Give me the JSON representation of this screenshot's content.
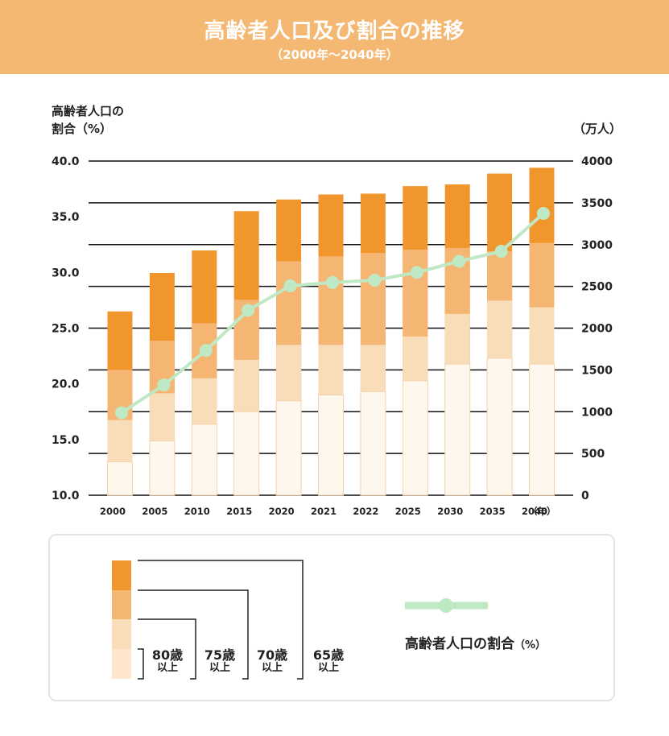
{
  "header": {
    "title": "高齢者人口及び割合の推移",
    "subtitle": "（2000年～2040年）"
  },
  "chart_data": {
    "type": "bar",
    "title": "高齢者人口及び割合の推移",
    "subtitle": "（2000年～2040年）",
    "categories": [
      "2000",
      "2005",
      "2010",
      "2015",
      "2020",
      "2021",
      "2022",
      "2025",
      "2030",
      "2035",
      "2040"
    ],
    "x_unit_label": "（年）",
    "left_axis": {
      "label_line1": "高齢者人口の",
      "label_line2": "割合（%）",
      "range": [
        10,
        40
      ],
      "ticks": [
        "10.0",
        "15.0",
        "20.0",
        "25.0",
        "30.0",
        "35.0",
        "40.0"
      ]
    },
    "right_axis": {
      "label": "（万人）",
      "range": [
        0,
        4000
      ],
      "ticks": [
        "0",
        "500",
        "1000",
        "1500",
        "2000",
        "2500",
        "3000",
        "3500",
        "4000"
      ]
    },
    "bar_series": [
      {
        "name": "80歳以上",
        "color": "#fef7ee",
        "values": [
          400,
          650,
          850,
          1000,
          1130,
          1200,
          1240,
          1370,
          1570,
          1640,
          1570
        ]
      },
      {
        "name": "75歳以上",
        "color": "#f9dcb8",
        "values": [
          900,
          1220,
          1400,
          1620,
          1800,
          1800,
          1800,
          1900,
          2170,
          2330,
          2250
        ]
      },
      {
        "name": "70歳以上",
        "color": "#f5b674",
        "values": [
          1500,
          1850,
          2060,
          2340,
          2800,
          2860,
          2900,
          2940,
          2960,
          2920,
          3020
        ]
      },
      {
        "name": "65歳以上",
        "color": "#f0962c",
        "values": [
          2200,
          2660,
          2930,
          3400,
          3540,
          3600,
          3610,
          3700,
          3720,
          3850,
          3920
        ]
      }
    ],
    "line_series": {
      "name": "高齢者人口の割合（%）",
      "color": "#bfe8c4",
      "values": [
        17.4,
        19.9,
        23.0,
        26.6,
        28.8,
        29.1,
        29.3,
        30.0,
        31.0,
        31.9,
        35.3
      ]
    },
    "grid": true
  },
  "legend": {
    "labels": [
      {
        "top": "80歳",
        "bottom": "以上"
      },
      {
        "top": "75歳",
        "bottom": "以上"
      },
      {
        "top": "70歳",
        "bottom": "以上"
      },
      {
        "top": "65歳",
        "bottom": "以上"
      }
    ],
    "line_label": "高齢者人口の割合",
    "line_unit": "（%）"
  }
}
